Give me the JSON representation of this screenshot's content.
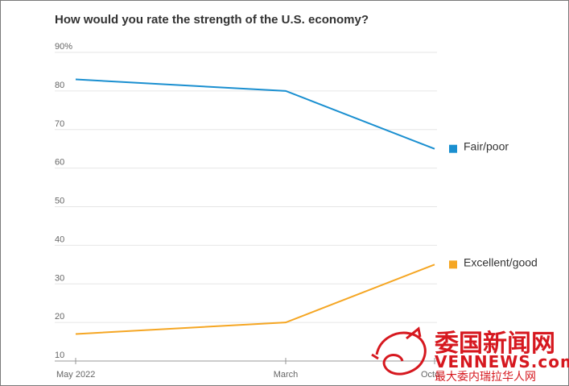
{
  "chart_data": {
    "type": "line",
    "title": "How would you rate the strength of the U.S. economy?",
    "categories": [
      "May 2022",
      "March",
      "October"
    ],
    "x_tick_labels": [
      "May 2022",
      "March",
      "Octo"
    ],
    "y_tick_labels": [
      "90%",
      "80",
      "70",
      "60",
      "50",
      "40",
      "30",
      "20",
      "10"
    ],
    "ylim": [
      10,
      90
    ],
    "grid": true,
    "legend_placement": "right, at line ends",
    "series": [
      {
        "name": "Fair/poor",
        "values": [
          83,
          80,
          65
        ],
        "color": "#1a8fd0"
      },
      {
        "name": "Excellent/good",
        "values": [
          17,
          20,
          35
        ],
        "color": "#f5a623"
      }
    ]
  },
  "watermark": {
    "title": "委国新闻网",
    "domain": "VENNEWS.com",
    "tagline": "最大委内瑞拉华人网",
    "color": "#d6181f"
  }
}
